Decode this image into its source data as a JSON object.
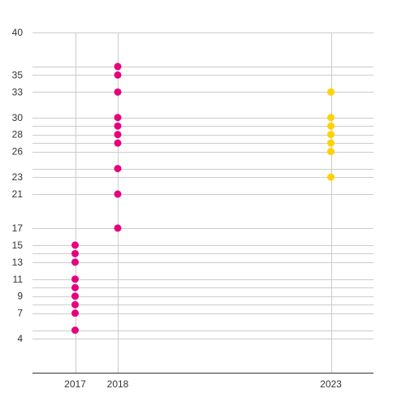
{
  "chart_data": {
    "type": "scatter",
    "title": "",
    "xlabel": "",
    "ylabel": "",
    "xlim": [
      2016,
      2024
    ],
    "ylim": [
      0,
      40
    ],
    "x_ticks": [
      2017,
      2018,
      2023
    ],
    "y_ticks": [
      4,
      7,
      9,
      11,
      13,
      15,
      17,
      21,
      23,
      26,
      28,
      30,
      33,
      35,
      40
    ],
    "grid_lines_y": [
      4,
      5,
      7,
      8,
      9,
      10,
      11,
      13,
      14,
      15,
      17,
      21,
      23,
      24,
      26,
      27,
      28,
      29,
      30,
      33,
      35,
      36,
      40
    ],
    "grid": true,
    "legend": "none",
    "series": [
      {
        "color": "#e6007e",
        "points": [
          {
            "x": 2017,
            "y": 5
          },
          {
            "x": 2017,
            "y": 7
          },
          {
            "x": 2017,
            "y": 8
          },
          {
            "x": 2017,
            "y": 9
          },
          {
            "x": 2017,
            "y": 10
          },
          {
            "x": 2017,
            "y": 11
          },
          {
            "x": 2017,
            "y": 13
          },
          {
            "x": 2017,
            "y": 14
          },
          {
            "x": 2017,
            "y": 15
          },
          {
            "x": 2018,
            "y": 17
          },
          {
            "x": 2018,
            "y": 21
          },
          {
            "x": 2018,
            "y": 24
          },
          {
            "x": 2018,
            "y": 27
          },
          {
            "x": 2018,
            "y": 28
          },
          {
            "x": 2018,
            "y": 29
          },
          {
            "x": 2018,
            "y": 30
          },
          {
            "x": 2018,
            "y": 33
          },
          {
            "x": 2018,
            "y": 35
          },
          {
            "x": 2018,
            "y": 36
          }
        ]
      },
      {
        "color": "#ffd200",
        "points": [
          {
            "x": 2023,
            "y": 23
          },
          {
            "x": 2023,
            "y": 26
          },
          {
            "x": 2023,
            "y": 27
          },
          {
            "x": 2023,
            "y": 28
          },
          {
            "x": 2023,
            "y": 29
          },
          {
            "x": 2023,
            "y": 30
          },
          {
            "x": 2023,
            "y": 33
          }
        ]
      }
    ]
  }
}
